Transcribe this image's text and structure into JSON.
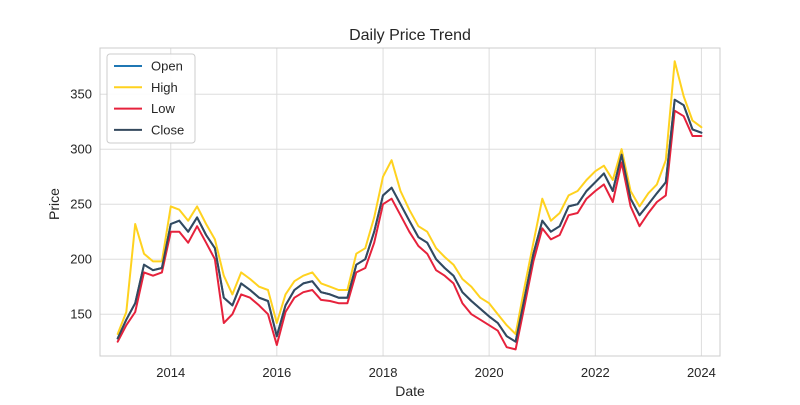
{
  "chart_data": {
    "type": "line",
    "title": "Daily Price Trend",
    "xlabel": "Date",
    "ylabel": "Price",
    "x_ticks": [
      "2014",
      "2016",
      "2018",
      "2020",
      "2022",
      "2024"
    ],
    "y_ticks": [
      "150",
      "200",
      "250",
      "300",
      "350"
    ],
    "xlim": [
      "2012-09-01",
      "2024-05-08"
    ],
    "ylim": [
      112,
      392
    ],
    "grid": true,
    "legend_position": "top-left",
    "colors": {
      "Open": "#1f77b4",
      "High": "#ffd21f",
      "Low": "#e6223c",
      "Close": "#34495e"
    },
    "dates": [
      "2013-01-01",
      "2013-03-01",
      "2013-05-01",
      "2013-07-01",
      "2013-09-01",
      "2013-11-01",
      "2014-01-01",
      "2014-03-01",
      "2014-05-01",
      "2014-07-01",
      "2014-09-01",
      "2014-11-01",
      "2015-01-01",
      "2015-03-01",
      "2015-05-01",
      "2015-07-01",
      "2015-09-01",
      "2015-11-01",
      "2016-01-01",
      "2016-03-01",
      "2016-05-01",
      "2016-07-01",
      "2016-09-01",
      "2016-11-01",
      "2017-01-01",
      "2017-03-01",
      "2017-05-01",
      "2017-07-01",
      "2017-09-01",
      "2017-11-01",
      "2018-01-01",
      "2018-03-01",
      "2018-05-01",
      "2018-07-01",
      "2018-09-01",
      "2018-11-01",
      "2019-01-01",
      "2019-03-01",
      "2019-05-01",
      "2019-07-01",
      "2019-09-01",
      "2019-11-01",
      "2020-01-01",
      "2020-03-01",
      "2020-05-01",
      "2020-07-01",
      "2020-09-01",
      "2020-11-01",
      "2021-01-01",
      "2021-03-01",
      "2021-05-01",
      "2021-07-01",
      "2021-09-01",
      "2021-11-01",
      "2022-01-01",
      "2022-03-01",
      "2022-05-01",
      "2022-07-01",
      "2022-09-01",
      "2022-11-01",
      "2023-01-01",
      "2023-03-01",
      "2023-05-01",
      "2023-07-01",
      "2023-09-01",
      "2023-11-01",
      "2024-01-01"
    ],
    "series": [
      {
        "name": "Open",
        "values": [
          128,
          145,
          160,
          195,
          190,
          192,
          232,
          235,
          225,
          238,
          222,
          210,
          165,
          158,
          178,
          172,
          165,
          162,
          130,
          158,
          172,
          178,
          180,
          170,
          168,
          165,
          165,
          195,
          200,
          225,
          258,
          265,
          250,
          235,
          220,
          215,
          200,
          192,
          185,
          170,
          162,
          155,
          148,
          142,
          130,
          125,
          165,
          205,
          235,
          225,
          230,
          248,
          250,
          262,
          270,
          278,
          262,
          295,
          255,
          240,
          250,
          260,
          270,
          345,
          340,
          318,
          315
        ]
      },
      {
        "name": "High",
        "values": [
          132,
          152,
          232,
          205,
          198,
          198,
          248,
          245,
          235,
          248,
          232,
          218,
          185,
          168,
          188,
          182,
          175,
          172,
          142,
          168,
          180,
          185,
          188,
          178,
          175,
          172,
          172,
          205,
          210,
          238,
          275,
          290,
          262,
          245,
          230,
          225,
          210,
          202,
          195,
          182,
          175,
          165,
          160,
          150,
          140,
          132,
          175,
          215,
          255,
          235,
          242,
          258,
          262,
          272,
          280,
          285,
          272,
          300,
          262,
          248,
          260,
          268,
          290,
          380,
          348,
          326,
          320
        ]
      },
      {
        "name": "Low",
        "values": [
          125,
          140,
          152,
          188,
          185,
          188,
          225,
          225,
          215,
          230,
          215,
          200,
          142,
          150,
          168,
          165,
          158,
          150,
          122,
          152,
          165,
          170,
          172,
          163,
          162,
          160,
          160,
          188,
          192,
          215,
          250,
          255,
          240,
          225,
          212,
          205,
          190,
          185,
          178,
          160,
          150,
          145,
          140,
          135,
          120,
          118,
          158,
          198,
          228,
          218,
          222,
          240,
          242,
          255,
          262,
          268,
          252,
          288,
          248,
          230,
          242,
          252,
          258,
          335,
          330,
          312,
          312
        ]
      },
      {
        "name": "Close",
        "values": [
          128,
          145,
          160,
          195,
          190,
          192,
          232,
          235,
          225,
          238,
          222,
          210,
          165,
          158,
          178,
          172,
          165,
          162,
          130,
          158,
          172,
          178,
          180,
          170,
          168,
          165,
          165,
          195,
          200,
          225,
          258,
          265,
          250,
          235,
          220,
          215,
          200,
          192,
          185,
          170,
          162,
          155,
          148,
          142,
          130,
          125,
          165,
          205,
          235,
          225,
          230,
          248,
          250,
          262,
          270,
          278,
          262,
          295,
          255,
          240,
          250,
          260,
          270,
          345,
          340,
          318,
          315
        ]
      }
    ]
  }
}
